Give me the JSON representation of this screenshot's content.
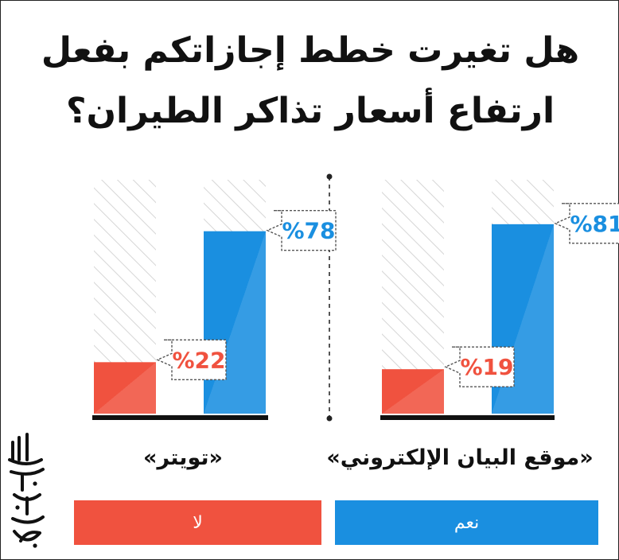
{
  "title": {
    "line1": "هل تغيرت خطط إجازاتكم بفعل",
    "line2": "ارتفاع أسعار تذاكر الطيران؟"
  },
  "colors": {
    "yes": "#1a8fe0",
    "no": "#f0523f",
    "track_stripe": "#d8d8d8",
    "baseline": "#111111"
  },
  "legend": {
    "yes_label": "نعم",
    "no_label": "لا"
  },
  "logo_text": "البيان",
  "chart_data": {
    "type": "bar",
    "title": "هل تغيرت خطط إجازاتكم بفعل ارتفاع أسعار تذاكر الطيران؟",
    "ylim": [
      0,
      100
    ],
    "categories": [
      "«موقع البيان الإلكتروني»",
      "«تويتر»"
    ],
    "series": [
      {
        "name": "نعم",
        "values": [
          81,
          78
        ]
      },
      {
        "name": "لا",
        "values": [
          19,
          22
        ]
      }
    ],
    "value_labels": {
      "yes": [
        "%81",
        "%78"
      ],
      "no": [
        "%19",
        "%22"
      ]
    }
  }
}
